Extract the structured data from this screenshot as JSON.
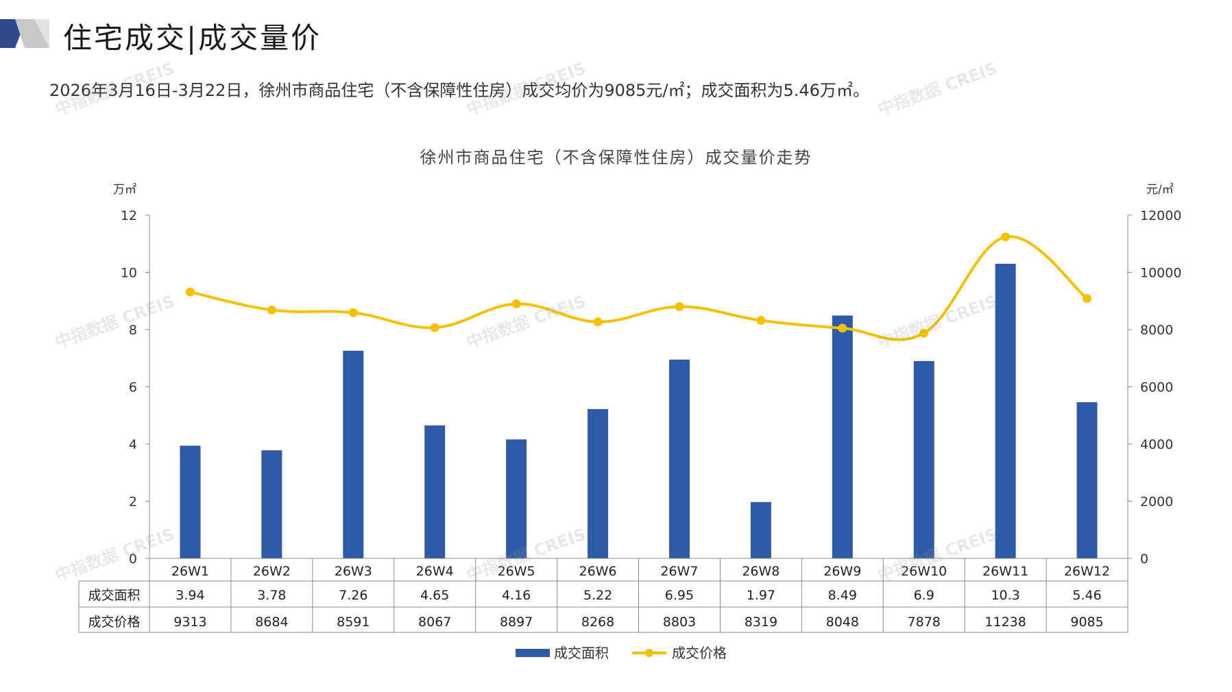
{
  "header": {
    "title": "住宅成交|成交量价"
  },
  "summary": "2026年3月16日-3月22日，徐州市商品住宅（不含保障性住房）成交均价为9085元/㎡；成交面积为5.46万㎡。",
  "watermark": "中指数据 CREIS",
  "colors": {
    "bar": "#2f5aa8",
    "line": "#f5c000",
    "accent_dark": "#2e4a8b",
    "accent_gray": "#c8c8c8"
  },
  "chart_data": {
    "type": "bar",
    "title": "徐州市商品住宅（不含保障性住房）成交量价走势",
    "categories": [
      "26W1",
      "26W2",
      "26W3",
      "26W4",
      "26W5",
      "26W6",
      "26W7",
      "26W8",
      "26W9",
      "26W10",
      "26W11",
      "26W12"
    ],
    "series": [
      {
        "name": "成交面积",
        "type": "bar",
        "axis": "left",
        "values": [
          3.94,
          3.78,
          7.26,
          4.65,
          4.16,
          5.22,
          6.95,
          1.97,
          8.49,
          6.9,
          10.3,
          5.46
        ],
        "labels": [
          "3.94",
          "3.78",
          "7.26",
          "4.65",
          "4.16",
          "5.22",
          "6.95",
          "1.97",
          "8.49",
          "6.9",
          "10.3",
          "5.46"
        ]
      },
      {
        "name": "成交价格",
        "type": "line",
        "axis": "right",
        "values": [
          9313,
          8684,
          8591,
          8067,
          8897,
          8268,
          8803,
          8319,
          8048,
          7878,
          11238,
          9085
        ],
        "labels": [
          "9313",
          "8684",
          "8591",
          "8067",
          "8897",
          "8268",
          "8803",
          "8319",
          "8048",
          "7878",
          "11238",
          "9085"
        ]
      }
    ],
    "y_left": {
      "unit": "万㎡",
      "range": [
        0,
        12
      ],
      "ticks": [
        "0",
        "2",
        "4",
        "6",
        "8",
        "10",
        "12"
      ]
    },
    "y_right": {
      "unit": "元/㎡",
      "range": [
        0,
        12000
      ],
      "ticks": [
        "0",
        "2000",
        "4000",
        "6000",
        "8000",
        "10000",
        "12000"
      ]
    },
    "grid": false,
    "legend_position": "bottom",
    "data_table": true
  }
}
